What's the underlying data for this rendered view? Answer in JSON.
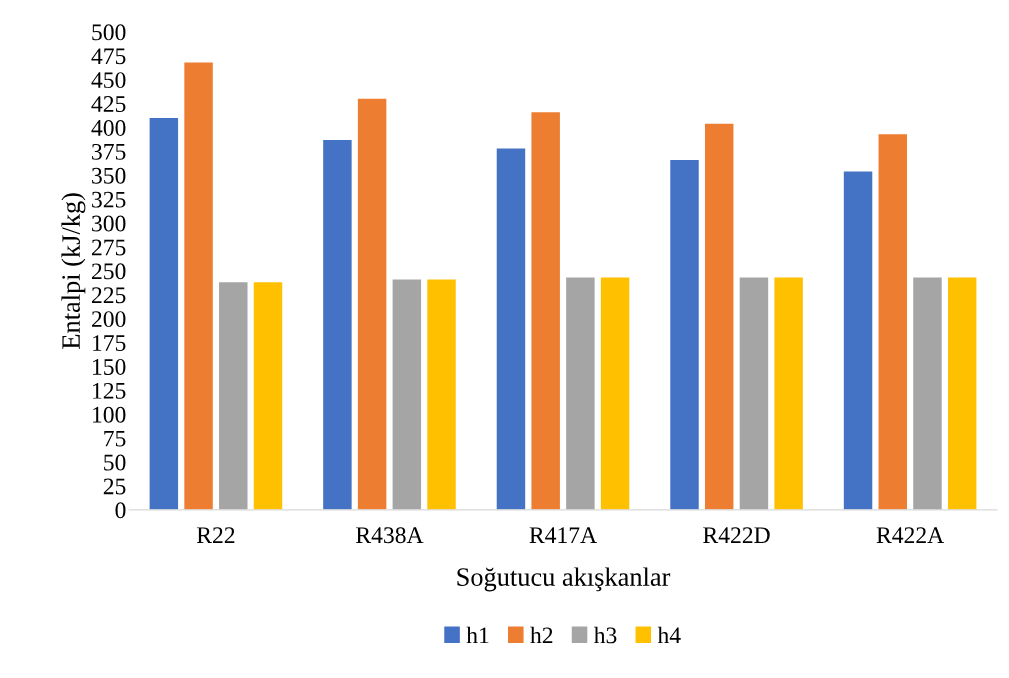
{
  "chart_data": {
    "type": "bar",
    "xlabel": "Soğutucu akışkanlar",
    "ylabel": "Entalpi (kJ/kg)",
    "categories": [
      "R22",
      "R438A",
      "R417A",
      "R422D",
      "R422A"
    ],
    "series": [
      {
        "name": "h1",
        "color": "#4472c4",
        "values": [
          410,
          387,
          378,
          366,
          354
        ]
      },
      {
        "name": "h2",
        "color": "#ed7d31",
        "values": [
          468,
          430,
          416,
          404,
          393
        ]
      },
      {
        "name": "h3",
        "color": "#a5a5a5",
        "values": [
          238,
          241,
          243,
          243,
          243
        ]
      },
      {
        "name": "h4",
        "color": "#ffc000",
        "values": [
          238,
          241,
          243,
          243,
          243
        ]
      }
    ],
    "ylim": [
      0,
      500
    ],
    "yticks": [
      0,
      25,
      50,
      75,
      100,
      125,
      150,
      175,
      200,
      225,
      250,
      275,
      300,
      325,
      350,
      375,
      400,
      425,
      450,
      475,
      500
    ],
    "grid": false,
    "legend": "bottom"
  }
}
